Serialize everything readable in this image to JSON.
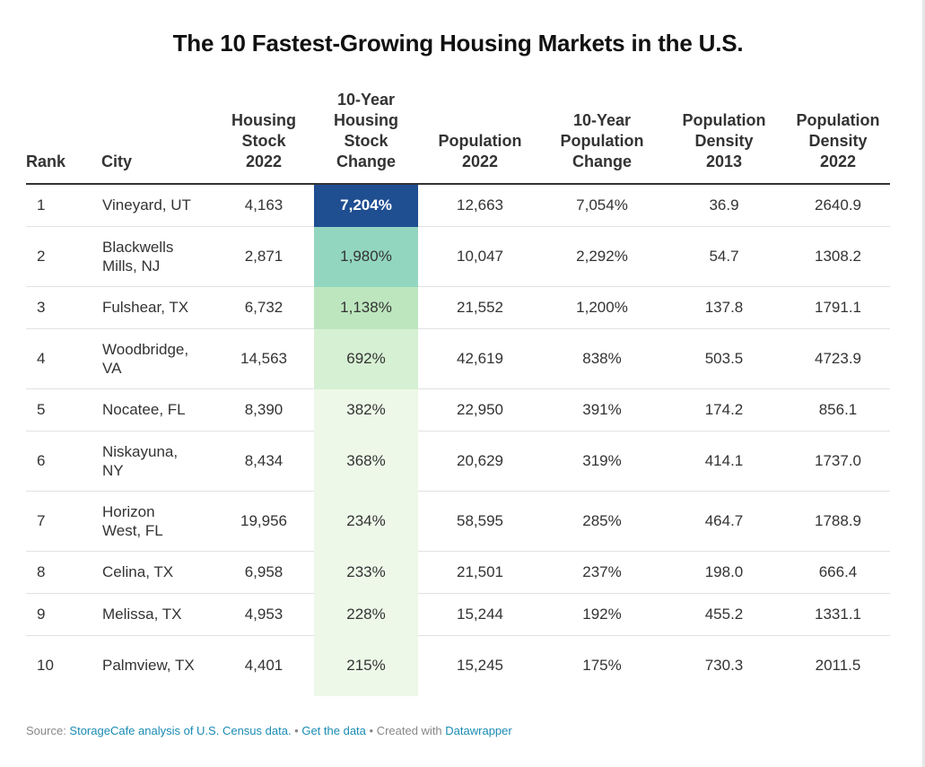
{
  "title": "The 10 Fastest-Growing Housing Markets in the U.S.",
  "colors": {
    "heat_max": "#1f4e91",
    "heat_high": "#93d6c0",
    "heat_mid": "#bde6be",
    "heat_low": "#d6f0d3",
    "heat_min": "#edf8e8",
    "link": "#1a8bb3"
  },
  "chart_data": {
    "type": "table",
    "title": "The 10 Fastest-Growing Housing Markets in the U.S.",
    "columns": [
      {
        "key": "rank",
        "lines": [
          "Rank"
        ]
      },
      {
        "key": "city",
        "lines": [
          "City"
        ]
      },
      {
        "key": "housing_stock_2022",
        "lines": [
          "Housing",
          "Stock",
          "2022"
        ]
      },
      {
        "key": "housing_stock_change",
        "lines": [
          "10-Year",
          "Housing",
          "Stock",
          "Change"
        ]
      },
      {
        "key": "population_2022",
        "lines": [
          "Population",
          "2022"
        ]
      },
      {
        "key": "population_change",
        "lines": [
          "10-Year",
          "Population",
          "Change"
        ]
      },
      {
        "key": "density_2013",
        "lines": [
          "Population",
          "Density",
          "2013"
        ]
      },
      {
        "key": "density_2022",
        "lines": [
          "Population",
          "Density",
          "2022"
        ]
      }
    ],
    "rows": [
      {
        "rank": "1",
        "city": "Vineyard, UT",
        "housing_stock_2022": "4,163",
        "housing_stock_change": "7,204%",
        "population_2022": "12,663",
        "population_change": "7,054%",
        "density_2013": "36.9",
        "density_2022": "2640.9"
      },
      {
        "rank": "2",
        "city": "Blackwells Mills, NJ",
        "housing_stock_2022": "2,871",
        "housing_stock_change": "1,980%",
        "population_2022": "10,047",
        "population_change": "2,292%",
        "density_2013": "54.7",
        "density_2022": "1308.2"
      },
      {
        "rank": "3",
        "city": "Fulshear, TX",
        "housing_stock_2022": "6,732",
        "housing_stock_change": "1,138%",
        "population_2022": "21,552",
        "population_change": "1,200%",
        "density_2013": "137.8",
        "density_2022": "1791.1"
      },
      {
        "rank": "4",
        "city": "Woodbridge, VA",
        "housing_stock_2022": "14,563",
        "housing_stock_change": "692%",
        "population_2022": "42,619",
        "population_change": "838%",
        "density_2013": "503.5",
        "density_2022": "4723.9"
      },
      {
        "rank": "5",
        "city": "Nocatee, FL",
        "housing_stock_2022": "8,390",
        "housing_stock_change": "382%",
        "population_2022": "22,950",
        "population_change": "391%",
        "density_2013": "174.2",
        "density_2022": "856.1"
      },
      {
        "rank": "6",
        "city": "Niskayuna, NY",
        "housing_stock_2022": "8,434",
        "housing_stock_change": "368%",
        "population_2022": "20,629",
        "population_change": "319%",
        "density_2013": "414.1",
        "density_2022": "1737.0"
      },
      {
        "rank": "7",
        "city": "Horizon West, FL",
        "housing_stock_2022": "19,956",
        "housing_stock_change": "234%",
        "population_2022": "58,595",
        "population_change": "285%",
        "density_2013": "464.7",
        "density_2022": "1788.9"
      },
      {
        "rank": "8",
        "city": "Celina, TX",
        "housing_stock_2022": "6,958",
        "housing_stock_change": "233%",
        "population_2022": "21,501",
        "population_change": "237%",
        "density_2013": "198.0",
        "density_2022": "666.4"
      },
      {
        "rank": "9",
        "city": "Melissa, TX",
        "housing_stock_2022": "4,953",
        "housing_stock_change": "228%",
        "population_2022": "15,244",
        "population_change": "192%",
        "density_2013": "455.2",
        "density_2022": "1331.1"
      },
      {
        "rank": "10",
        "city": "Palmview, TX",
        "housing_stock_2022": "4,401",
        "housing_stock_change": "215%",
        "population_2022": "15,245",
        "population_change": "175%",
        "density_2013": "730.3",
        "density_2022": "2011.5"
      }
    ]
  },
  "footer": {
    "source_prefix": "Source: ",
    "source_link": "StorageCafe analysis of U.S. Census data.",
    "separator": " • ",
    "get_data": "Get the data",
    "created_with": "Created with ",
    "tool": "Datawrapper"
  }
}
